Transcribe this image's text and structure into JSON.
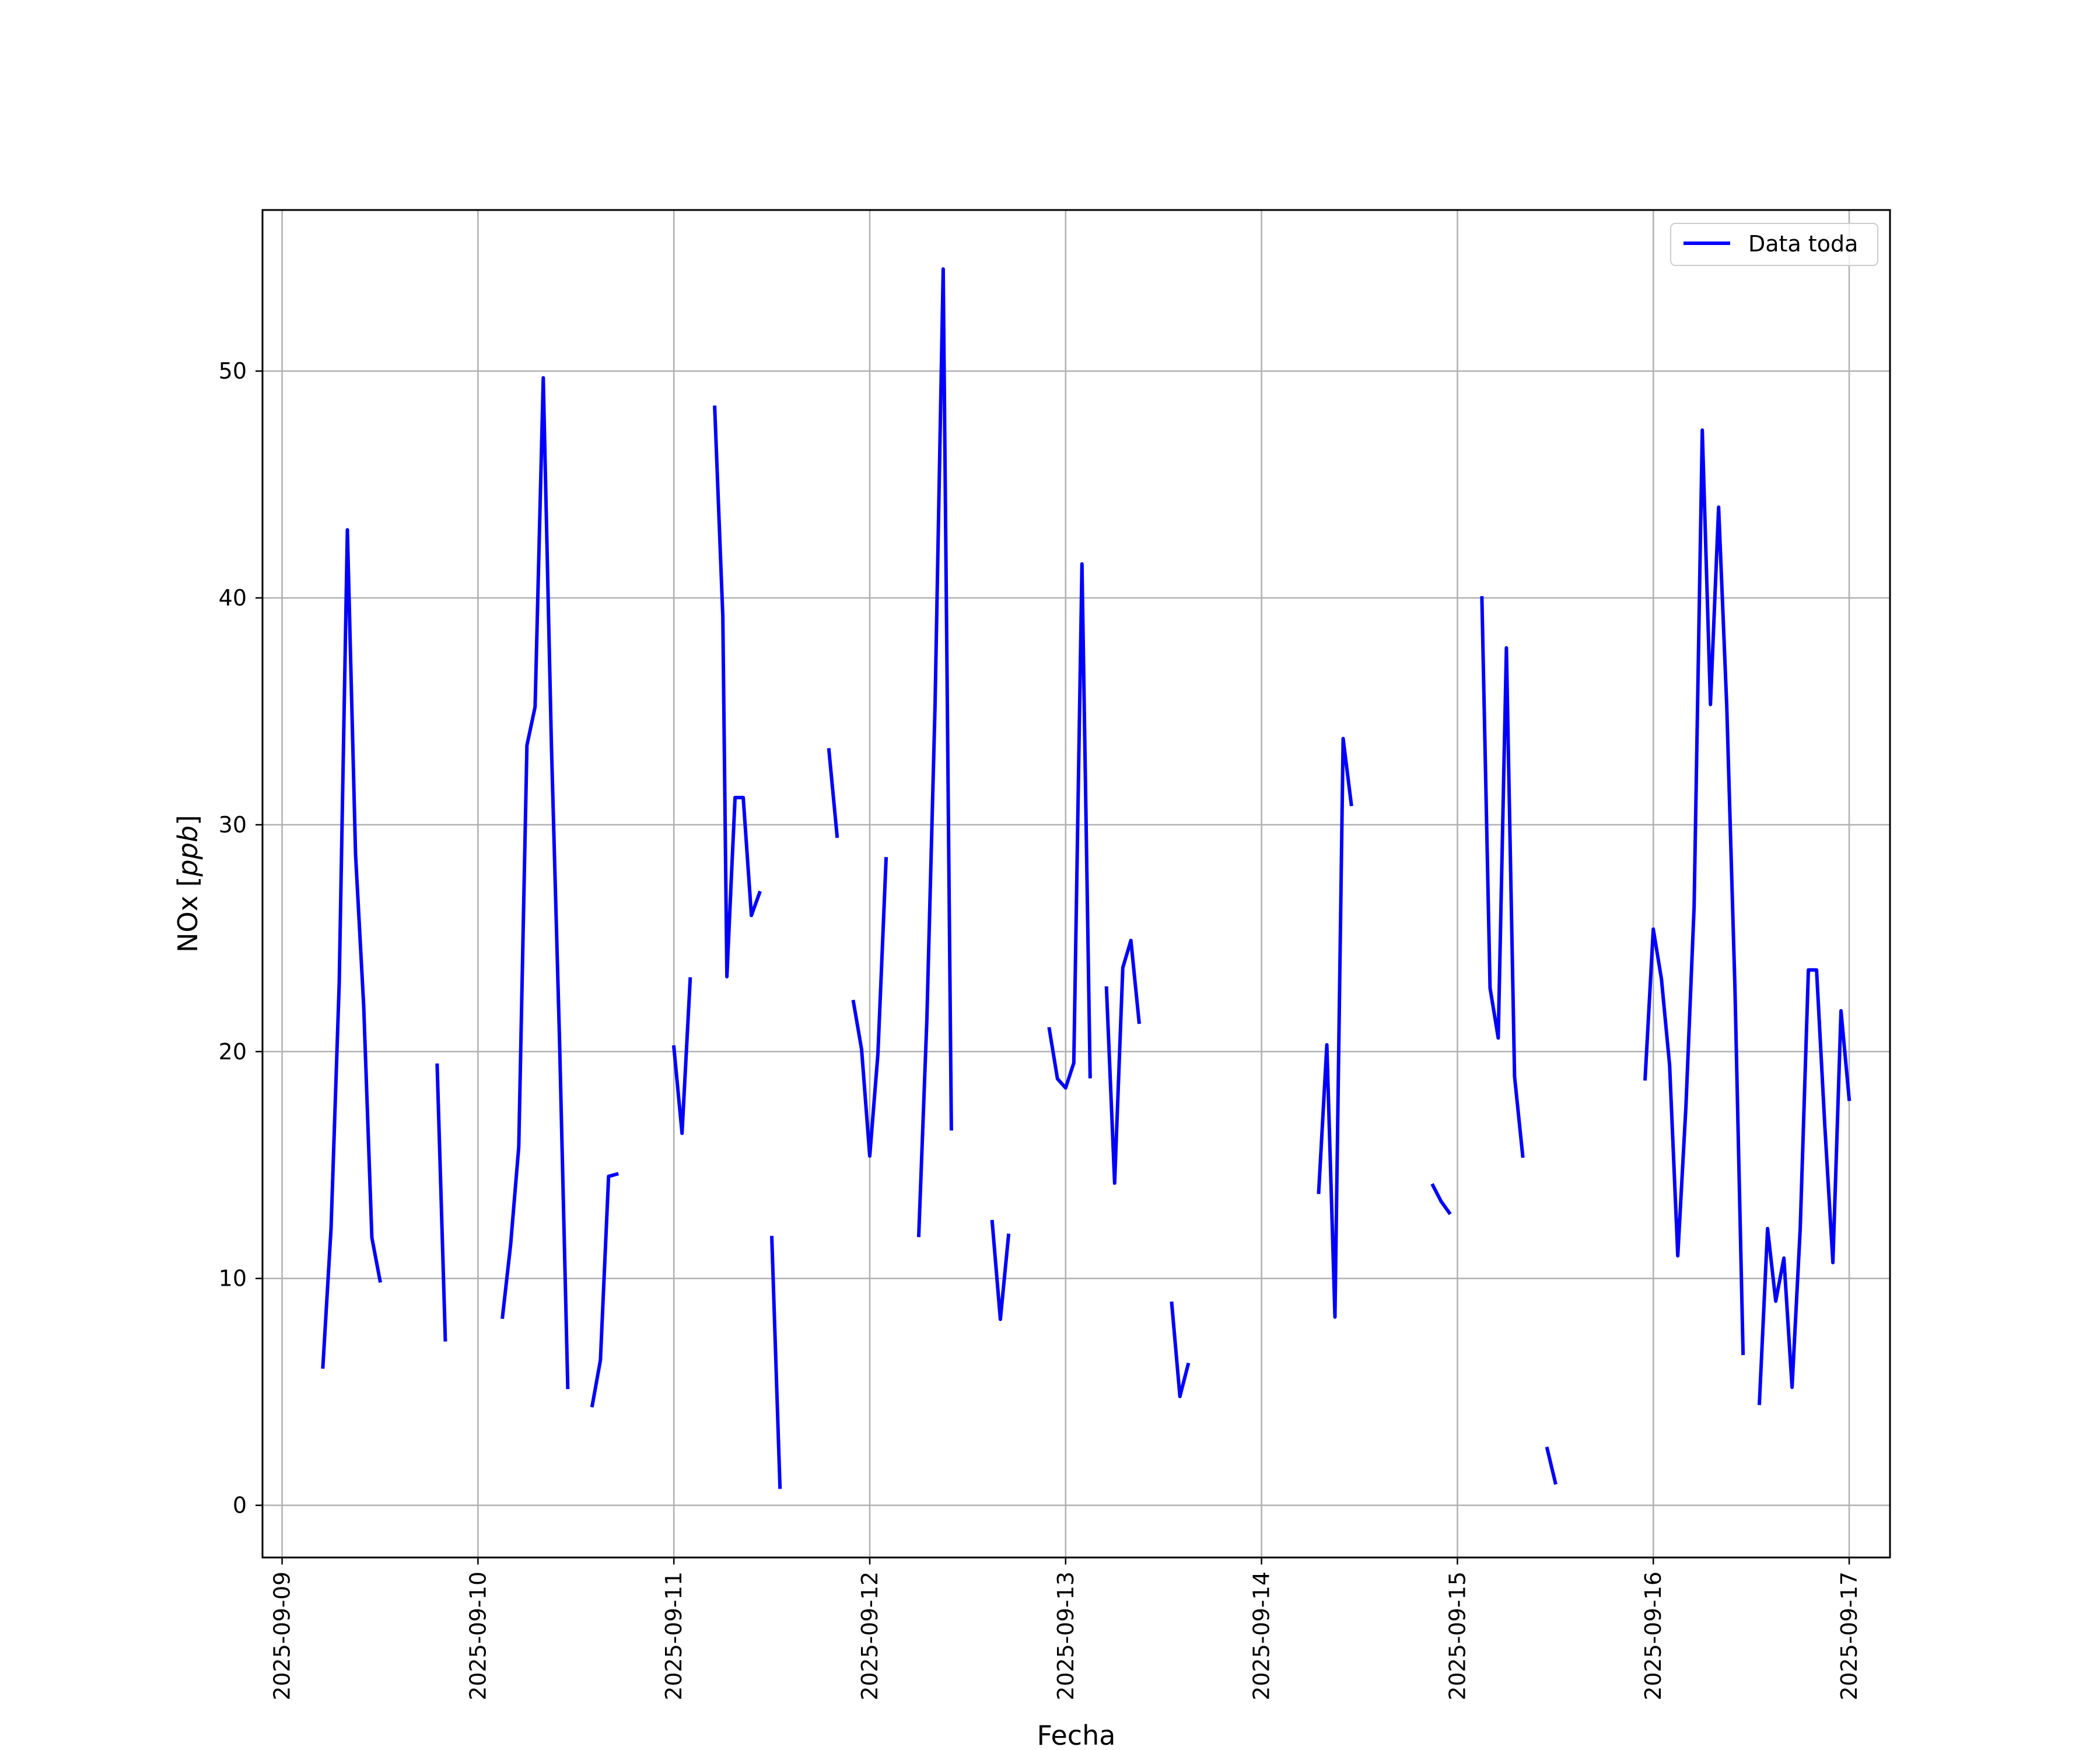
{
  "chart_data": {
    "type": "line",
    "title": "",
    "xlabel": "Fecha",
    "ylabel": "NOx [ppb]",
    "ylabel_parts": {
      "plain": "NOx [",
      "italic": "ppb",
      "close": "]"
    },
    "xlim": [
      "2025-09-08 21:36",
      "2025-09-17 05:00"
    ],
    "ylim": [
      -2.3,
      57.1
    ],
    "x_ticks": [
      "2025-09-09",
      "2025-09-10",
      "2025-09-11",
      "2025-09-12",
      "2025-09-13",
      "2025-09-14",
      "2025-09-15",
      "2025-09-16",
      "2025-09-17"
    ],
    "y_ticks": [
      "0",
      "10",
      "20",
      "30",
      "40",
      "50"
    ],
    "grid": true,
    "legend_position": "top-right",
    "colors": {
      "series": "#0000ff",
      "grid": "#b0b0b0"
    },
    "series": [
      {
        "name": "Data toda",
        "color": "#0000ff",
        "segments": [
          [
            [
              "2025-09-09 05:00",
              6.1
            ],
            [
              "2025-09-09 06:00",
              12.2
            ],
            [
              "2025-09-09 07:00",
              23.0
            ],
            [
              "2025-09-09 08:00",
              43.0
            ],
            [
              "2025-09-09 09:00",
              28.7
            ],
            [
              "2025-09-09 10:00",
              22.0
            ],
            [
              "2025-09-09 11:00",
              11.8
            ],
            [
              "2025-09-09 12:00",
              9.9
            ]
          ],
          [
            [
              "2025-09-09 19:00",
              19.4
            ],
            [
              "2025-09-09 20:00",
              7.3
            ]
          ],
          [
            [
              "2025-09-10 03:00",
              8.3
            ],
            [
              "2025-09-10 04:00",
              11.5
            ],
            [
              "2025-09-10 05:00",
              15.8
            ],
            [
              "2025-09-10 06:00",
              33.5
            ],
            [
              "2025-09-10 07:00",
              35.2
            ],
            [
              "2025-09-10 08:00",
              49.7
            ],
            [
              "2025-09-10 09:00",
              33.5
            ],
            [
              "2025-09-10 10:00",
              20.4
            ],
            [
              "2025-09-10 11:00",
              5.2
            ]
          ],
          [
            [
              "2025-09-10 14:00",
              4.4
            ],
            [
              "2025-09-10 15:00",
              6.4
            ],
            [
              "2025-09-10 16:00",
              14.5
            ],
            [
              "2025-09-10 17:00",
              14.6
            ]
          ],
          [
            [
              "2025-09-11 00:00",
              20.2
            ],
            [
              "2025-09-11 01:00",
              16.4
            ],
            [
              "2025-09-11 02:00",
              23.2
            ]
          ],
          [
            [
              "2025-09-11 05:00",
              48.4
            ],
            [
              "2025-09-11 06:00",
              39.2
            ],
            [
              "2025-09-11 06:30",
              23.3
            ],
            [
              "2025-09-11 07:00",
              27.3
            ],
            [
              "2025-09-11 07:30",
              31.2
            ],
            [
              "2025-09-11 08:30",
              31.2
            ],
            [
              "2025-09-11 09:30",
              26.0
            ],
            [
              "2025-09-11 10:30",
              27.0
            ]
          ],
          [
            [
              "2025-09-11 12:00",
              11.8
            ],
            [
              "2025-09-11 13:00",
              0.8
            ]
          ],
          [
            [
              "2025-09-11 19:00",
              33.3
            ],
            [
              "2025-09-11 20:00",
              29.5
            ]
          ],
          [
            [
              "2025-09-11 22:00",
              22.2
            ],
            [
              "2025-09-11 23:00",
              20.1
            ],
            [
              "2025-09-12 00:00",
              15.4
            ],
            [
              "2025-09-12 01:00",
              19.9
            ],
            [
              "2025-09-12 02:00",
              28.5
            ]
          ],
          [
            [
              "2025-09-12 06:00",
              11.9
            ],
            [
              "2025-09-12 07:00",
              21.4
            ],
            [
              "2025-09-12 08:00",
              35.2
            ],
            [
              "2025-09-12 09:00",
              54.5
            ],
            [
              "2025-09-12 10:00",
              16.6
            ]
          ],
          [
            [
              "2025-09-12 15:00",
              12.5
            ],
            [
              "2025-09-12 16:00",
              8.2
            ],
            [
              "2025-09-12 17:00",
              11.9
            ]
          ],
          [
            [
              "2025-09-12 22:00",
              21.0
            ],
            [
              "2025-09-12 23:00",
              18.8
            ],
            [
              "2025-09-13 00:00",
              18.4
            ],
            [
              "2025-09-13 01:00",
              19.5
            ],
            [
              "2025-09-13 02:00",
              41.5
            ],
            [
              "2025-09-13 03:00",
              18.9
            ]
          ],
          [
            [
              "2025-09-13 05:00",
              22.8
            ],
            [
              "2025-09-13 06:00",
              14.2
            ],
            [
              "2025-09-13 07:00",
              23.7
            ],
            [
              "2025-09-13 08:00",
              24.9
            ],
            [
              "2025-09-13 09:00",
              21.3
            ]
          ],
          [
            [
              "2025-09-13 13:00",
              8.9
            ],
            [
              "2025-09-13 14:00",
              4.8
            ],
            [
              "2025-09-13 15:00",
              6.2
            ]
          ],
          [
            [
              "2025-09-14 07:00",
              13.8
            ],
            [
              "2025-09-14 08:00",
              20.3
            ],
            [
              "2025-09-14 09:00",
              8.3
            ],
            [
              "2025-09-14 10:00",
              33.8
            ],
            [
              "2025-09-14 11:00",
              30.9
            ]
          ],
          [
            [
              "2025-09-14 21:00",
              14.1
            ],
            [
              "2025-09-14 22:00",
              13.4
            ],
            [
              "2025-09-14 23:00",
              12.9
            ]
          ],
          [
            [
              "2025-09-15 03:00",
              40.0
            ],
            [
              "2025-09-15 04:00",
              22.8
            ],
            [
              "2025-09-15 05:00",
              20.6
            ],
            [
              "2025-09-15 06:00",
              37.8
            ],
            [
              "2025-09-15 07:00",
              18.9
            ],
            [
              "2025-09-15 08:00",
              15.4
            ]
          ],
          [
            [
              "2025-09-15 11:00",
              2.5
            ],
            [
              "2025-09-15 12:00",
              1.0
            ]
          ],
          [
            [
              "2025-09-15 23:00",
              18.8
            ],
            [
              "2025-09-16 00:00",
              25.4
            ],
            [
              "2025-09-16 01:00",
              23.2
            ],
            [
              "2025-09-16 02:00",
              19.4
            ],
            [
              "2025-09-16 03:00",
              11.0
            ],
            [
              "2025-09-16 04:00",
              17.6
            ],
            [
              "2025-09-16 05:00",
              26.4
            ],
            [
              "2025-09-16 06:00",
              47.4
            ],
            [
              "2025-09-16 07:00",
              35.3
            ],
            [
              "2025-09-16 08:00",
              44.0
            ],
            [
              "2025-09-16 09:00",
              35.2
            ],
            [
              "2025-09-16 10:00",
              22.8
            ],
            [
              "2025-09-16 11:00",
              6.7
            ]
          ],
          [
            [
              "2025-09-16 13:00",
              4.5
            ],
            [
              "2025-09-16 14:00",
              12.2
            ],
            [
              "2025-09-16 15:00",
              9.0
            ],
            [
              "2025-09-16 16:00",
              10.9
            ],
            [
              "2025-09-16 17:00",
              5.2
            ],
            [
              "2025-09-16 18:00",
              12.2
            ],
            [
              "2025-09-16 19:00",
              23.6
            ],
            [
              "2025-09-16 20:00",
              23.6
            ],
            [
              "2025-09-16 21:00",
              16.8
            ],
            [
              "2025-09-16 22:00",
              10.7
            ],
            [
              "2025-09-16 23:00",
              21.8
            ],
            [
              "2025-09-17 00:00",
              17.9
            ]
          ]
        ]
      }
    ]
  }
}
